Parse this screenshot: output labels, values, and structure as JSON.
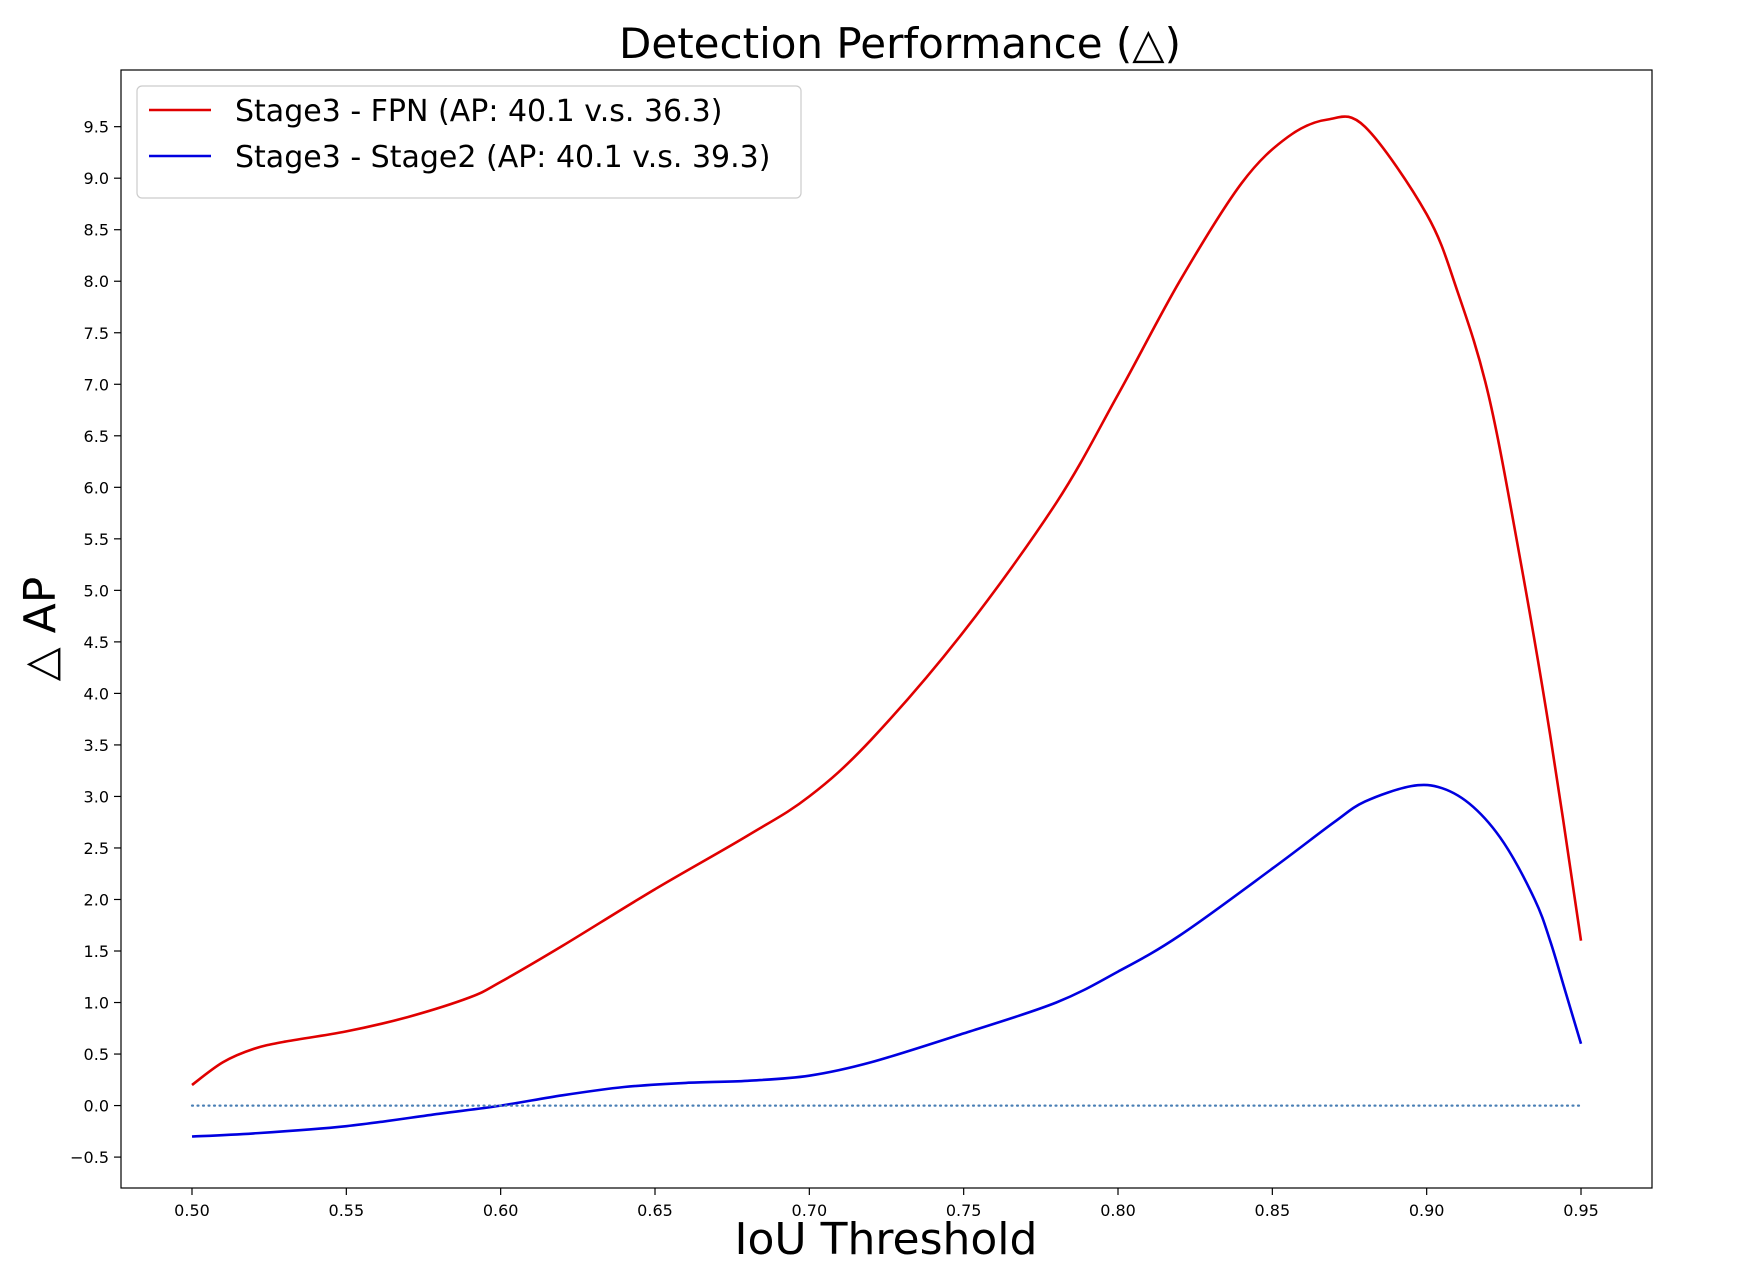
{
  "chart_data": {
    "type": "line",
    "title": "Detection Performance (△)",
    "xlabel": "IoU Threshold",
    "ylabel": "△ AP",
    "xlim": [
      0.477,
      0.973
    ],
    "ylim": [
      -0.8,
      10.05
    ],
    "xticks": [
      0.5,
      0.55,
      0.6,
      0.65,
      0.7,
      0.75,
      0.8,
      0.85,
      0.9,
      0.95
    ],
    "xtick_labels": [
      "0.50",
      "0.55",
      "0.60",
      "0.65",
      "0.70",
      "0.75",
      "0.80",
      "0.85",
      "0.90",
      "0.95"
    ],
    "yticks": [
      -0.5,
      0.0,
      0.5,
      1.0,
      1.5,
      2.0,
      2.5,
      3.0,
      3.5,
      4.0,
      4.5,
      5.0,
      5.5,
      6.0,
      6.5,
      7.0,
      7.5,
      8.0,
      8.5,
      9.0,
      9.5
    ],
    "ytick_labels": [
      "−0.5",
      "0.0",
      "0.5",
      "1.0",
      "1.5",
      "2.0",
      "2.5",
      "3.0",
      "3.5",
      "4.0",
      "4.5",
      "5.0",
      "5.5",
      "6.0",
      "6.5",
      "7.0",
      "7.5",
      "8.0",
      "8.5",
      "9.0",
      "9.5"
    ],
    "grid": false,
    "legend_position": "top-left",
    "series": [
      {
        "name": "Stage3 - FPN (AP: 40.1 v.s. 36.3)",
        "color": "#e00000",
        "style": "solid",
        "x": [
          0.5,
          0.51,
          0.52,
          0.53,
          0.55,
          0.57,
          0.59,
          0.6,
          0.62,
          0.65,
          0.68,
          0.7,
          0.72,
          0.75,
          0.78,
          0.8,
          0.82,
          0.84,
          0.855,
          0.868,
          0.88,
          0.9,
          0.91,
          0.92,
          0.93,
          0.94,
          0.95
        ],
        "y": [
          0.2,
          0.42,
          0.55,
          0.62,
          0.72,
          0.86,
          1.05,
          1.2,
          1.55,
          2.1,
          2.62,
          3.0,
          3.55,
          4.6,
          5.85,
          6.9,
          8.0,
          8.95,
          9.4,
          9.57,
          9.5,
          8.65,
          7.9,
          6.9,
          5.35,
          3.6,
          1.6
        ]
      },
      {
        "name": "Stage3 - Stage2 (AP: 40.1 v.s. 39.3)",
        "color": "#0000e0",
        "style": "solid",
        "x": [
          0.5,
          0.52,
          0.55,
          0.58,
          0.6,
          0.62,
          0.64,
          0.66,
          0.68,
          0.7,
          0.72,
          0.75,
          0.78,
          0.8,
          0.82,
          0.85,
          0.87,
          0.88,
          0.895,
          0.905,
          0.915,
          0.925,
          0.935,
          0.94,
          0.945,
          0.95
        ],
        "y": [
          -0.3,
          -0.27,
          -0.2,
          -0.08,
          0.0,
          0.1,
          0.18,
          0.22,
          0.24,
          0.29,
          0.42,
          0.7,
          1.0,
          1.3,
          1.65,
          2.3,
          2.75,
          2.95,
          3.1,
          3.08,
          2.9,
          2.55,
          2.0,
          1.6,
          1.1,
          0.6
        ]
      },
      {
        "name": "",
        "color": "#4a7fb5",
        "style": "dotted",
        "x": [
          0.5,
          0.95
        ],
        "y": [
          0.0,
          0.0
        ]
      }
    ]
  }
}
